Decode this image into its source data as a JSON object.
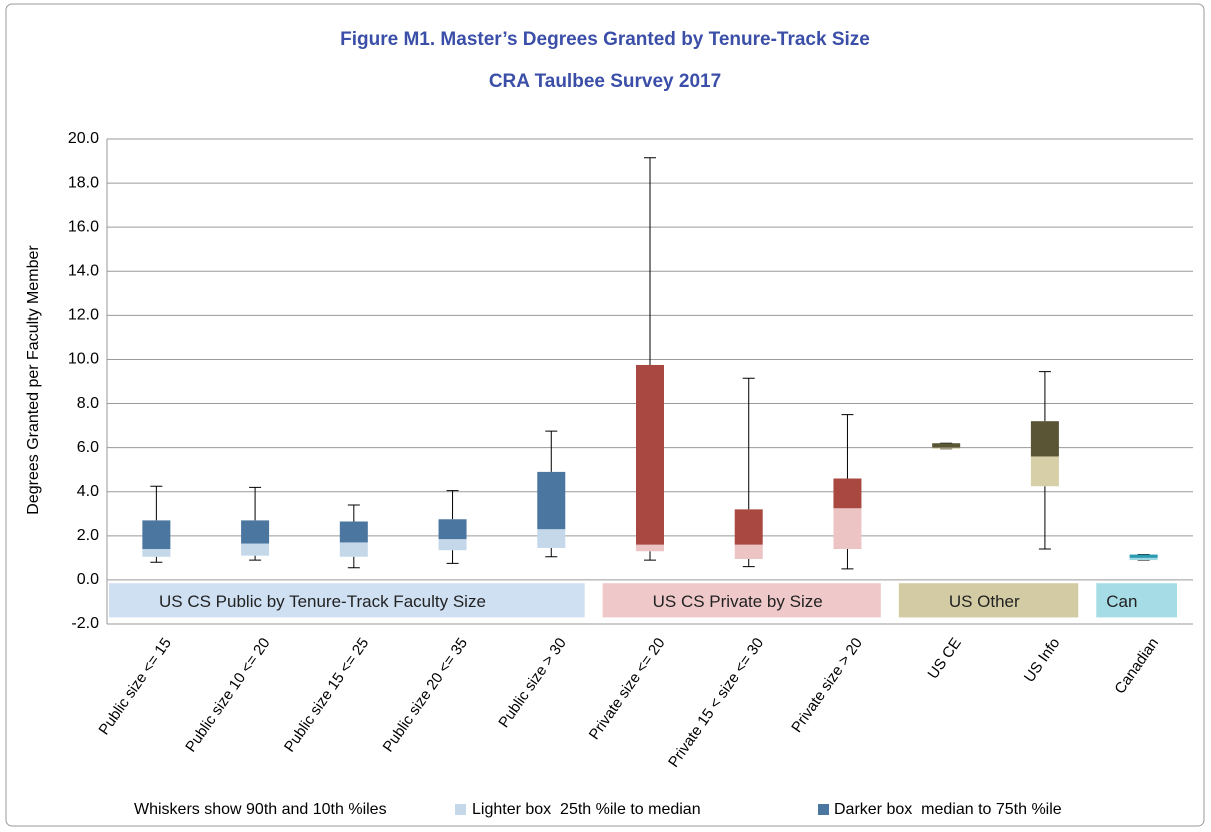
{
  "chart_data": {
    "type": "box",
    "title": "Figure M1. Master’s Degrees Granted by Tenure-Track Size",
    "subtitle": "CRA Taulbee Survey 2017",
    "y_label": "Degrees Granted per Faculty Member",
    "ylim": [
      -2,
      20
    ],
    "yticks": [
      {
        "value": -2,
        "label": "-2.0"
      },
      {
        "value": 0,
        "label": "0.0"
      },
      {
        "value": 2,
        "label": "2.0"
      },
      {
        "value": 4,
        "label": "4.0"
      },
      {
        "value": 6,
        "label": "6.0"
      },
      {
        "value": 8,
        "label": "8.0"
      },
      {
        "value": 10,
        "label": "10.0"
      },
      {
        "value": 12,
        "label": "12.0"
      },
      {
        "value": 14,
        "label": "14.0"
      },
      {
        "value": 16,
        "label": "16.0"
      },
      {
        "value": 18,
        "label": "18.0"
      },
      {
        "value": 20,
        "label": "20.0"
      }
    ],
    "grid": true,
    "groups": [
      {
        "name": "US CS Public by Tenure-Track Faculty Size",
        "band_color": "#cfe0f2",
        "dark_color": "#4a76a0",
        "light_color": "#c5d8ea",
        "boxes": [
          {
            "category": "Public size <= 15",
            "p10": 0.8,
            "q1": 1.05,
            "median": 1.4,
            "q3": 2.7,
            "p90": 4.25
          },
          {
            "category": "Public size 10 <= 20",
            "p10": 0.9,
            "q1": 1.1,
            "median": 1.65,
            "q3": 2.7,
            "p90": 4.2
          },
          {
            "category": "Public size 15 <= 25",
            "p10": 0.55,
            "q1": 1.05,
            "median": 1.7,
            "q3": 2.65,
            "p90": 3.4
          },
          {
            "category": "Public size 20 <= 35",
            "p10": 0.75,
            "q1": 1.35,
            "median": 1.85,
            "q3": 2.75,
            "p90": 4.05
          },
          {
            "category": "Public size > 30",
            "p10": 1.05,
            "q1": 1.45,
            "median": 2.3,
            "q3": 4.9,
            "p90": 6.75
          }
        ]
      },
      {
        "name": "US CS Private by Size",
        "band_color": "#efc9c9",
        "dark_color": "#a84840",
        "light_color": "#ecc4c4",
        "boxes": [
          {
            "category": "Private size <= 20",
            "p10": 0.9,
            "q1": 1.3,
            "median": 1.6,
            "q3": 9.75,
            "p90": 19.15
          },
          {
            "category": "Private 15 < size <= 30",
            "p10": 0.6,
            "q1": 0.95,
            "median": 1.6,
            "q3": 3.2,
            "p90": 9.15
          },
          {
            "category": "Private size > 20",
            "p10": 0.5,
            "q1": 1.4,
            "median": 3.25,
            "q3": 4.6,
            "p90": 7.5
          }
        ]
      },
      {
        "name": "US Other",
        "band_color": "#d3cba3",
        "dark_color": "#5a5535",
        "light_color": "#d6cfa8",
        "boxes": [
          {
            "category": "US CE",
            "p10": 5.95,
            "q1": 5.95,
            "median": 6.0,
            "q3": 6.2,
            "p90": 6.2
          },
          {
            "category": "US Info",
            "p10": 1.4,
            "q1": 4.25,
            "median": 5.6,
            "q3": 7.2,
            "p90": 9.45
          }
        ]
      },
      {
        "name": "Can",
        "band_color": "#a6dce6",
        "dark_color": "#2a9ab0",
        "light_color": "#9fd8e0",
        "boxes": [
          {
            "category": "Canadian",
            "p10": 0.9,
            "q1": 0.9,
            "median": 1.0,
            "q3": 1.15,
            "p90": 1.15
          }
        ]
      }
    ],
    "legend": [
      "Whiskers show 90th and 10th %iles",
      "Lighter box  25th %ile to median",
      "Darker box  median to 75th %ile"
    ]
  }
}
